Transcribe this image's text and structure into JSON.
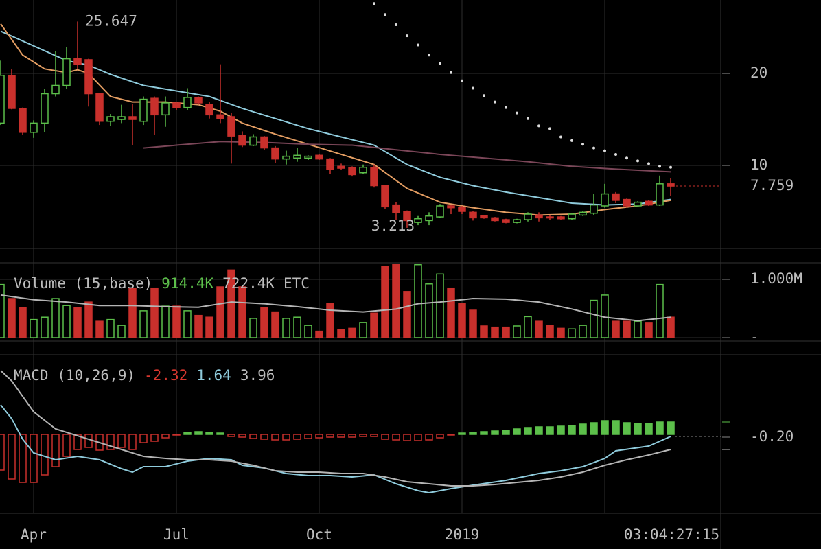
{
  "chart_data": [
    {
      "type": "candlestick",
      "categories": [
        null,
        null,
        null,
        "Apr",
        null,
        null,
        null,
        null,
        null,
        null,
        null,
        null,
        null,
        null,
        null,
        null,
        "Jul",
        null,
        null,
        null,
        null,
        null,
        null,
        null,
        null,
        null,
        null,
        null,
        null,
        "Oct",
        null,
        null,
        null,
        null,
        null,
        null,
        null,
        null,
        null,
        null,
        null,
        null,
        "2019",
        null,
        null,
        null,
        null,
        null,
        null,
        null,
        null,
        null,
        null,
        null,
        null,
        null,
        null,
        null,
        null,
        null,
        null,
        null
      ],
      "xticks": [
        3,
        16,
        29,
        42,
        55
      ],
      "open": [
        14.6,
        19.8,
        16.2,
        13.6,
        14.6,
        17.8,
        18.7,
        21.6,
        21.5,
        17.8,
        14.8,
        15.0,
        15.3,
        14.8,
        17.3,
        15.5,
        16.8,
        16.3,
        17.4,
        16.6,
        15.5,
        15.3,
        13.3,
        12.2,
        13.1,
        11.9,
        10.7,
        10.8,
        10.8,
        11.1,
        10.7,
        9.9,
        9.8,
        9.2,
        9.8,
        7.8,
        5.7,
        5.0,
        3.8,
        4.0,
        4.4,
        5.6,
        5.4,
        4.9,
        4.5,
        4.3,
        4.1,
        3.8,
        4.1,
        4.6,
        4.4,
        4.4,
        4.2,
        4.6,
        4.8,
        5.6,
        6.9,
        6.3,
        5.6,
        6.1,
        5.7,
        8.0
      ],
      "high": [
        21.4,
        20.5,
        16.3,
        14.9,
        18.3,
        22.4,
        22.9,
        25.647,
        21.6,
        17.8,
        15.6,
        16.6,
        16.7,
        17.5,
        17.5,
        17.5,
        16.9,
        18.4,
        17.5,
        16.9,
        21.0,
        15.7,
        13.7,
        13.4,
        13.2,
        12.1,
        11.6,
        11.9,
        11.1,
        11.2,
        10.8,
        10.2,
        9.9,
        10.1,
        10.1,
        7.9,
        6.0,
        5.1,
        4.5,
        4.9,
        5.8,
        5.7,
        5.6,
        5.0,
        4.6,
        4.4,
        4.2,
        4.2,
        4.9,
        4.9,
        4.6,
        4.5,
        4.8,
        5.0,
        6.9,
        8.0,
        7.1,
        6.4,
        6.1,
        6.2,
        8.9,
        8.6
      ],
      "low": [
        14.4,
        16.1,
        13.3,
        13.0,
        13.6,
        17.5,
        18.3,
        20.5,
        16.4,
        14.4,
        14.3,
        14.6,
        12.2,
        14.4,
        13.3,
        14.2,
        16.0,
        16.0,
        16.6,
        15.1,
        14.6,
        10.2,
        12.0,
        12.1,
        11.7,
        10.3,
        10.1,
        10.4,
        10.6,
        10.6,
        9.1,
        9.5,
        8.8,
        9.1,
        7.6,
        5.3,
        4.1,
        3.213,
        3.5,
        3.5,
        4.3,
        4.7,
        4.7,
        4.0,
        4.2,
        3.9,
        3.7,
        3.7,
        3.9,
        3.9,
        4.1,
        4.1,
        4.1,
        4.5,
        4.6,
        5.4,
        5.9,
        5.4,
        5.5,
        5.6,
        5.6,
        6.7
      ],
      "close": [
        19.8,
        16.2,
        13.6,
        14.6,
        17.8,
        18.7,
        21.6,
        21.0,
        17.8,
        14.8,
        15.3,
        15.3,
        15.0,
        17.2,
        15.5,
        16.8,
        16.3,
        17.4,
        16.8,
        15.5,
        15.1,
        13.2,
        12.2,
        13.1,
        11.9,
        10.7,
        11.0,
        11.1,
        11.0,
        10.7,
        9.6,
        9.7,
        9.0,
        9.8,
        7.8,
        5.5,
        4.9,
        4.0,
        4.2,
        4.5,
        5.6,
        5.4,
        5.0,
        4.3,
        4.3,
        4.0,
        3.8,
        4.1,
        4.7,
        4.3,
        4.3,
        4.2,
        4.7,
        4.9,
        5.7,
        6.9,
        6.2,
        5.6,
        6.0,
        5.7,
        8.0,
        7.759
      ],
      "up_color": "#5cbf4a",
      "down_color": "#c9302c",
      "ylim": [
        1.12,
        27.99
      ],
      "yticks": [
        10,
        20
      ],
      "grid": true,
      "overlays": [
        {
          "style": "line",
          "color": "#8fcbdc",
          "x": [
            0,
            6,
            8,
            10,
            13,
            16,
            19,
            22,
            25,
            28,
            31,
            34,
            37,
            40,
            43,
            46,
            49,
            52,
            55,
            58,
            61
          ],
          "values": [
            24.6,
            21.4,
            20.9,
            19.9,
            18.7,
            18.1,
            17.5,
            16.2,
            15.1,
            14.0,
            13.1,
            12.2,
            10.1,
            8.7,
            7.8,
            7.1,
            6.5,
            5.9,
            5.7,
            5.8,
            6.3
          ]
        },
        {
          "style": "line",
          "color": "#e39d62",
          "x": [
            0,
            2,
            4,
            6,
            7,
            8,
            10,
            12,
            15,
            18,
            20,
            22,
            25,
            28,
            31,
            34,
            37,
            40,
            43,
            46,
            49,
            52,
            55,
            58,
            61
          ],
          "values": [
            25.4,
            22.0,
            20.5,
            20.1,
            20.4,
            20.0,
            17.5,
            16.9,
            16.9,
            16.6,
            15.9,
            14.6,
            13.4,
            12.3,
            11.2,
            10.1,
            7.5,
            6.0,
            5.4,
            4.9,
            4.6,
            4.7,
            5.2,
            5.6,
            6.2
          ]
        },
        {
          "style": "line",
          "color": "#7b4658",
          "x": [
            13,
            16,
            20,
            24,
            28,
            32,
            36,
            40,
            44,
            48,
            52,
            56,
            61
          ],
          "values": [
            11.9,
            12.2,
            12.6,
            12.5,
            12.3,
            12.2,
            11.7,
            11.2,
            10.8,
            10.4,
            9.9,
            9.6,
            9.3
          ]
        },
        {
          "style": "dots",
          "color": "#dddddd",
          "x": [
            34,
            35,
            36,
            37,
            38,
            39,
            40,
            41,
            42,
            43,
            44,
            45,
            46,
            47,
            48,
            49,
            50,
            51,
            52,
            53,
            54,
            55,
            56,
            57,
            58,
            59,
            60,
            61
          ],
          "values": [
            27.6,
            26.4,
            25.3,
            24.1,
            23.1,
            22.0,
            21.1,
            20.1,
            19.2,
            18.4,
            17.6,
            16.9,
            16.3,
            15.7,
            15.1,
            14.3,
            14.0,
            13.1,
            12.7,
            12.3,
            11.9,
            11.6,
            11.2,
            10.8,
            10.5,
            10.2,
            9.9,
            9.8
          ]
        }
      ],
      "countdown": "03:04:27:15"
    },
    {
      "type": "bar",
      "title": "Volume (15,base)",
      "legend_values": [
        "914.4K",
        "722.4K"
      ],
      "legend_colors": [
        "#5cbf4a",
        "#bdbdbd"
      ],
      "unit": "ETC",
      "values": [
        910000,
        670000,
        520000,
        310000,
        350000,
        670000,
        550000,
        520000,
        610000,
        280000,
        310000,
        210000,
        850000,
        460000,
        850000,
        540000,
        540000,
        460000,
        380000,
        350000,
        870000,
        1160000,
        870000,
        330000,
        520000,
        440000,
        330000,
        350000,
        210000,
        110000,
        590000,
        140000,
        160000,
        260000,
        420000,
        1220000,
        1250000,
        790000,
        1250000,
        920000,
        1090000,
        850000,
        590000,
        470000,
        200000,
        180000,
        180000,
        200000,
        360000,
        280000,
        210000,
        160000,
        150000,
        210000,
        640000,
        730000,
        280000,
        280000,
        280000,
        260000,
        910000,
        350000
      ],
      "ylim": [
        -59000,
        1282000
      ],
      "yticks": [
        {
          "value": 1000000,
          "label": "1.000M"
        },
        {
          "value": 0,
          "label": "-"
        }
      ],
      "line": {
        "color": "#b5b5b5",
        "x": [
          0,
          3,
          6,
          9,
          12,
          15,
          18,
          21,
          24,
          27,
          30,
          33,
          36,
          38,
          40,
          43,
          46,
          49,
          52,
          55,
          58,
          61
        ],
        "values": [
          730000,
          650000,
          610000,
          550000,
          550000,
          530000,
          520000,
          610000,
          580000,
          530000,
          470000,
          440000,
          490000,
          580000,
          610000,
          670000,
          660000,
          610000,
          490000,
          350000,
          290000,
          350000
        ]
      }
    },
    {
      "type": "macd",
      "title": "MACD (10,26,9)",
      "legend_values": [
        "-2.32",
        "1.64",
        "3.96"
      ],
      "legend_colors": [
        "#d8372f",
        "#8fcbdc",
        "#bdbdbd"
      ],
      "histogram": {
        "pos_color": "#5cbf4a",
        "neg_color": "#c9302c",
        "values": [
          -2.6,
          -3.25,
          -3.5,
          -3.5,
          -2.95,
          -2.35,
          -1.6,
          -1.1,
          -0.95,
          -1.15,
          -1.1,
          -0.95,
          -1.1,
          -0.6,
          -0.5,
          -0.25,
          -0.05,
          0.15,
          0.2,
          0.15,
          0.1,
          -0.15,
          -0.2,
          -0.3,
          -0.35,
          -0.4,
          -0.4,
          -0.35,
          -0.3,
          -0.25,
          -0.2,
          -0.2,
          -0.2,
          -0.15,
          -0.15,
          -0.35,
          -0.4,
          -0.45,
          -0.45,
          -0.4,
          -0.25,
          -0.05,
          0.1,
          0.15,
          0.2,
          0.25,
          0.3,
          0.4,
          0.5,
          0.55,
          0.55,
          0.6,
          0.65,
          0.75,
          0.85,
          1.0,
          1.0,
          0.85,
          0.8,
          0.8,
          0.9,
          0.9
        ]
      },
      "series": [
        {
          "color": "#8fcbdc",
          "x": [
            0,
            1,
            2,
            3,
            5,
            7,
            9,
            11,
            12,
            13,
            15,
            17,
            19,
            21,
            22,
            24,
            26,
            28,
            30,
            32,
            34,
            36,
            38,
            39,
            41,
            43,
            46,
            49,
            51,
            53,
            55,
            56,
            59,
            61
          ],
          "values": [
            2.15,
            1.15,
            -0.35,
            -1.35,
            -1.85,
            -1.6,
            -1.85,
            -2.5,
            -2.75,
            -2.35,
            -2.35,
            -1.95,
            -1.75,
            -1.85,
            -2.25,
            -2.45,
            -2.85,
            -3.0,
            -3.0,
            -3.1,
            -2.95,
            -3.6,
            -4.1,
            -4.25,
            -3.95,
            -3.7,
            -3.35,
            -2.85,
            -2.65,
            -2.35,
            -1.75,
            -1.2,
            -0.85,
            -0.15
          ]
        },
        {
          "color": "#b5b5b5",
          "x": [
            0,
            1,
            3,
            5,
            7,
            9,
            11,
            13,
            15,
            17,
            19,
            21,
            23,
            25,
            27,
            29,
            31,
            33,
            35,
            37,
            39,
            41,
            43,
            45,
            47,
            49,
            51,
            53,
            55,
            57,
            59,
            61
          ],
          "values": [
            4.65,
            3.9,
            1.65,
            0.4,
            -0.1,
            -0.6,
            -1.1,
            -1.6,
            -1.75,
            -1.85,
            -1.85,
            -1.95,
            -2.25,
            -2.65,
            -2.75,
            -2.75,
            -2.85,
            -2.85,
            -3.1,
            -3.45,
            -3.6,
            -3.75,
            -3.75,
            -3.65,
            -3.5,
            -3.35,
            -3.1,
            -2.75,
            -2.25,
            -1.85,
            -1.5,
            -1.1
          ]
        }
      ],
      "ylim": [
        -5.75,
        5.8
      ],
      "yticks": [
        {
          "value": -0.2,
          "label": "-0.20"
        }
      ]
    }
  ]
}
